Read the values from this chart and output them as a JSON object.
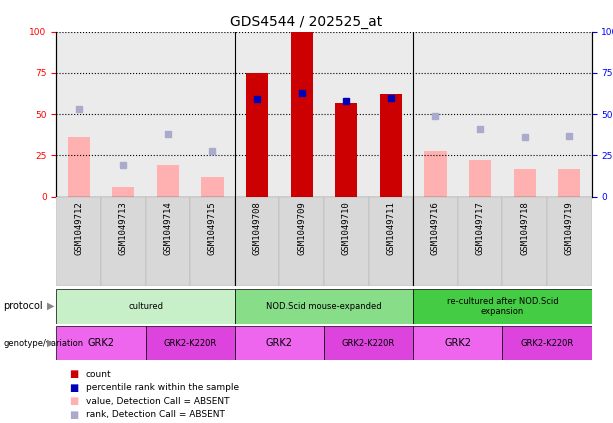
{
  "title": "GDS4544 / 202525_at",
  "samples": [
    "GSM1049712",
    "GSM1049713",
    "GSM1049714",
    "GSM1049715",
    "GSM1049708",
    "GSM1049709",
    "GSM1049710",
    "GSM1049711",
    "GSM1049716",
    "GSM1049717",
    "GSM1049718",
    "GSM1049719"
  ],
  "red_bars": [
    0,
    0,
    0,
    0,
    75,
    100,
    57,
    62,
    0,
    0,
    0,
    0
  ],
  "blue_squares": [
    0,
    0,
    0,
    0,
    59,
    63,
    58,
    60,
    0,
    0,
    0,
    0
  ],
  "pink_bars": [
    36,
    6,
    19,
    12,
    0,
    0,
    0,
    0,
    28,
    22,
    17,
    17
  ],
  "lavender_squares": [
    53,
    19,
    38,
    28,
    0,
    0,
    0,
    0,
    49,
    41,
    36,
    37
  ],
  "protocol_groups": [
    {
      "label": "cultured",
      "start": 0,
      "end": 4,
      "color": "#c8f0c8"
    },
    {
      "label": "NOD.Scid mouse-expanded",
      "start": 4,
      "end": 8,
      "color": "#88dd88"
    },
    {
      "label": "re-cultured after NOD.Scid\nexpansion",
      "start": 8,
      "end": 12,
      "color": "#44cc44"
    }
  ],
  "genotype_groups": [
    {
      "label": "GRK2",
      "start": 0,
      "end": 2,
      "color": "#ee66ee"
    },
    {
      "label": "GRK2-K220R",
      "start": 2,
      "end": 4,
      "color": "#dd44dd"
    },
    {
      "label": "GRK2",
      "start": 4,
      "end": 6,
      "color": "#ee66ee"
    },
    {
      "label": "GRK2-K220R",
      "start": 6,
      "end": 8,
      "color": "#dd44dd"
    },
    {
      "label": "GRK2",
      "start": 8,
      "end": 10,
      "color": "#ee66ee"
    },
    {
      "label": "GRK2-K220R",
      "start": 10,
      "end": 12,
      "color": "#dd44dd"
    }
  ],
  "red_color": "#cc0000",
  "blue_color": "#0000bb",
  "pink_color": "#ffb0b0",
  "lavender_color": "#aaaacc",
  "ylim": [
    0,
    100
  ],
  "bar_width": 0.5,
  "title_fontsize": 10,
  "tick_fontsize": 6.5,
  "label_fontsize": 7,
  "n_samples": 12
}
